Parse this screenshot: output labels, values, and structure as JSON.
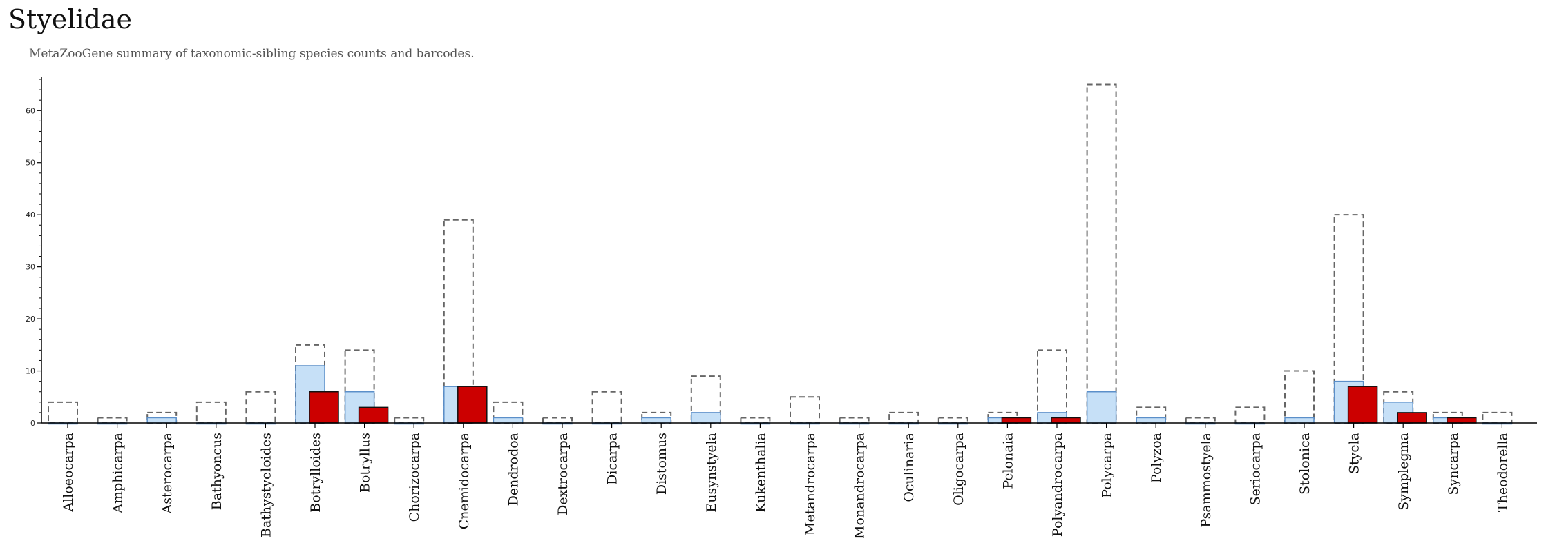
{
  "page": {
    "title": "Styelidae",
    "subtitle": "MetaZooGene summary of taxonomic-sibling species counts and barcodes."
  },
  "colors": {
    "total_outline": "#666666",
    "species": "#c6e0f7",
    "species_outline": "#5b8fc9",
    "barcodes": "#cc0000",
    "barcodes_outline": "#111111",
    "axis": "#000000"
  },
  "chart_data": {
    "type": "bar",
    "ylim": [
      0,
      66
    ],
    "yticks": [
      0,
      10,
      20,
      30,
      40,
      50,
      60
    ],
    "categories": [
      "Alloeocarpa",
      "Amphicarpa",
      "Asterocarpa",
      "Bathyoncus",
      "Bathystyeloides",
      "Botrylloides",
      "Botryllus",
      "Chorizocarpa",
      "Cnemidocarpa",
      "Dendrodoa",
      "Dextrocarpa",
      "Dicarpa",
      "Distomus",
      "Eusynstyela",
      "Kukenthalia",
      "Metandrocarpa",
      "Monandrocarpa",
      "Oculinaria",
      "Oligocarpa",
      "Pelonaia",
      "Polyandrocarpa",
      "Polycarpa",
      "Polyzoa",
      "Psammostyela",
      "Seriocarpa",
      "Stolonica",
      "Styela",
      "Symplegma",
      "Syncarpa",
      "Theodorella"
    ],
    "series": [
      {
        "key": "total",
        "style": "dashed-outline",
        "values": [
          4,
          1,
          2,
          4,
          6,
          15,
          14,
          1,
          39,
          4,
          1,
          6,
          2,
          9,
          1,
          5,
          1,
          2,
          1,
          2,
          14,
          65,
          3,
          1,
          3,
          10,
          40,
          6,
          2,
          2
        ]
      },
      {
        "key": "species",
        "style": "light-blue",
        "values": [
          0,
          0,
          1,
          0,
          0,
          11,
          6,
          0,
          7,
          1,
          0,
          0,
          1,
          2,
          0,
          0,
          0,
          0,
          0,
          1,
          2,
          6,
          1,
          0,
          0,
          1,
          8,
          4,
          1,
          0
        ]
      },
      {
        "key": "barcodes",
        "style": "red",
        "values": [
          0,
          0,
          0,
          0,
          0,
          6,
          3,
          0,
          7,
          0,
          0,
          0,
          0,
          0,
          0,
          0,
          0,
          0,
          0,
          1,
          1,
          0,
          0,
          0,
          0,
          0,
          7,
          2,
          1,
          0
        ]
      }
    ]
  }
}
